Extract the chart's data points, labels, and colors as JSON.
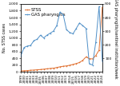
{
  "years": [
    1999,
    2000,
    2001,
    2002,
    2003,
    2004,
    2005,
    2006,
    2007,
    2008,
    2009,
    2010,
    2011,
    2012,
    2013,
    2014,
    2015,
    2016,
    2017,
    2018,
    2019,
    2020,
    2021,
    2022,
    2023,
    2024
  ],
  "stss": [
    28,
    32,
    38,
    48,
    52,
    62,
    68,
    78,
    88,
    100,
    108,
    128,
    148,
    165,
    175,
    195,
    218,
    245,
    275,
    340,
    440,
    390,
    380,
    480,
    640,
    1900
  ],
  "gas_pharyngitis": [
    120,
    180,
    190,
    195,
    230,
    240,
    270,
    250,
    270,
    285,
    300,
    340,
    440,
    420,
    310,
    290,
    280,
    320,
    360,
    340,
    320,
    60,
    50,
    220,
    480,
    80
  ],
  "stss_color": "#e07030",
  "gas_color": "#5090c8",
  "stss_label": "STSS",
  "gas_label": "GAS pharyngitis",
  "ylim_left": [
    0,
    2000
  ],
  "ylim_right": [
    0,
    500
  ],
  "yticks_left": [
    0,
    200,
    400,
    600,
    800,
    1000,
    1200,
    1400,
    1600,
    1800,
    2000
  ],
  "yticks_right": [
    100,
    200,
    300,
    400,
    500
  ],
  "ylabel_left": "No. STSS cases",
  "ylabel_right": "GAS pharyngitis/sentinel institution/week",
  "linewidth": 0.7,
  "marker_size": 1.2,
  "legend_fontsize": 3.8,
  "axis_fontsize": 3.5,
  "tick_fontsize": 3.2,
  "background_color": "#ffffff"
}
